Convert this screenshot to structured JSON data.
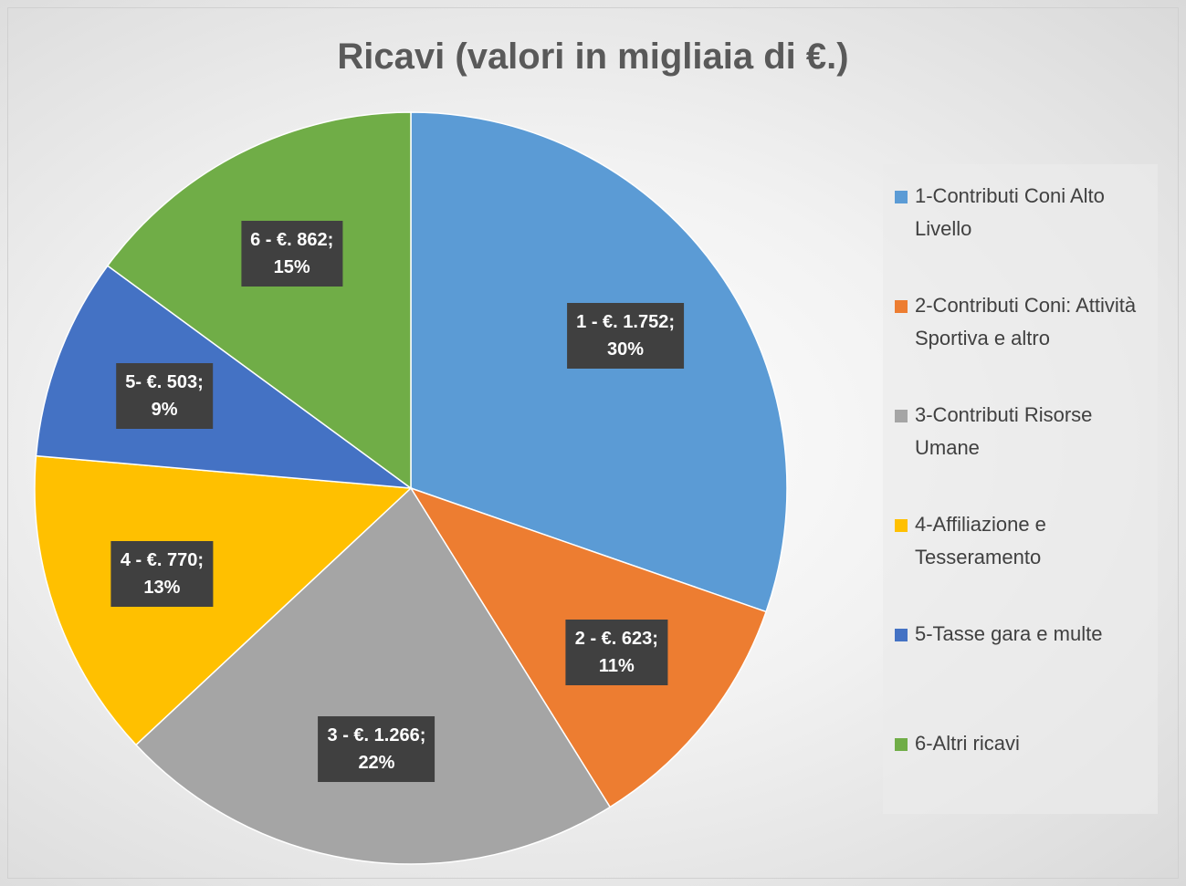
{
  "chart_data": {
    "type": "pie",
    "title": "Ricavi  (valori in migliaia di €.)",
    "categories": [
      "1-Contributi Coni Alto Livello",
      "2-Contributi Coni: Attività Sportiva e altro",
      "3-Contributi Risorse Umane",
      "4-Affiliazione e Tesseramento",
      "5-Tasse gara e multe",
      "6-Altri ricavi"
    ],
    "values": [
      1752,
      623,
      1266,
      770,
      503,
      862
    ],
    "value_labels": [
      "1 - €. 1.752;",
      "2 - €. 623;",
      "3 - €. 1.266;",
      "4 - €. 770;",
      "5- €. 503;",
      "6 - €. 862;"
    ],
    "percentage_labels": [
      "30%",
      "11%",
      "22%",
      "13%",
      "9%",
      "15%"
    ],
    "colors": [
      "#5b9bd5",
      "#ed7d31",
      "#a5a5a5",
      "#ffc000",
      "#4472c4",
      "#70ad47"
    ],
    "legend": "right"
  }
}
